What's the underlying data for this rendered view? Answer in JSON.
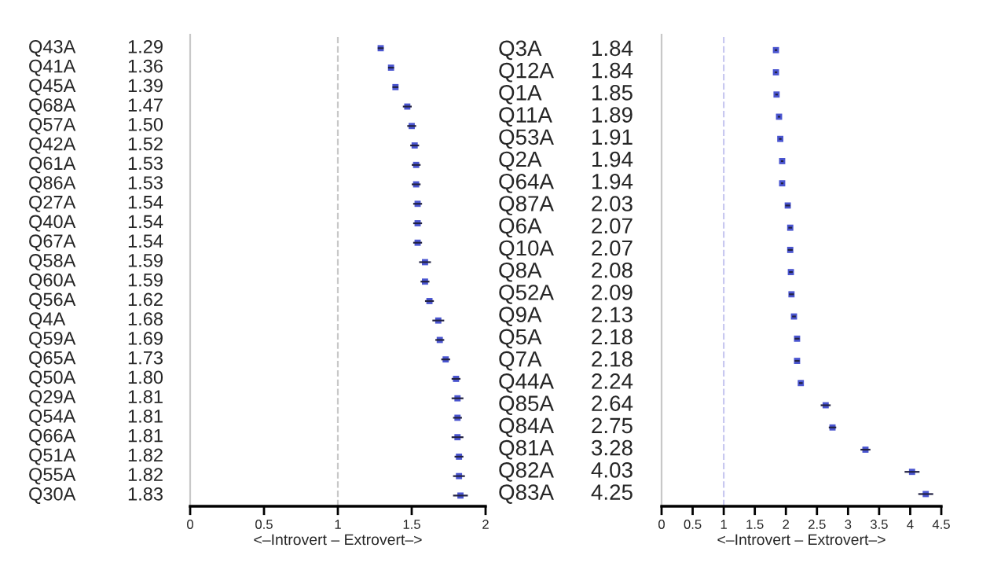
{
  "chart_data": [
    {
      "type": "scatter",
      "orientation": "horizontal",
      "marker": "square",
      "grid": false,
      "legend": false,
      "categories": [
        "Q43A",
        "Q41A",
        "Q45A",
        "Q68A",
        "Q57A",
        "Q42A",
        "Q61A",
        "Q86A",
        "Q27A",
        "Q40A",
        "Q67A",
        "Q58A",
        "Q60A",
        "Q56A",
        "Q4A",
        "Q59A",
        "Q65A",
        "Q50A",
        "Q29A",
        "Q54A",
        "Q66A",
        "Q51A",
        "Q55A",
        "Q30A"
      ],
      "series": [
        {
          "color": "#4a55d0",
          "values": [
            1.29,
            1.36,
            1.39,
            1.47,
            1.5,
            1.52,
            1.53,
            1.53,
            1.54,
            1.54,
            1.54,
            1.59,
            1.59,
            1.62,
            1.68,
            1.69,
            1.73,
            1.8,
            1.81,
            1.81,
            1.81,
            1.82,
            1.82,
            1.83
          ],
          "value_labels": [
            "1.29",
            "1.36",
            "1.39",
            "1.47",
            "1.50",
            "1.52",
            "1.53",
            "1.53",
            "1.54",
            "1.54",
            "1.54",
            "1.59",
            "1.59",
            "1.62",
            "1.68",
            "1.69",
            "1.73",
            "1.80",
            "1.81",
            "1.81",
            "1.81",
            "1.82",
            "1.82",
            "1.83"
          ],
          "errors": [
            0.02,
            0.02,
            0.02,
            0.03,
            0.03,
            0.03,
            0.03,
            0.03,
            0.03,
            0.03,
            0.03,
            0.04,
            0.03,
            0.03,
            0.04,
            0.03,
            0.03,
            0.03,
            0.04,
            0.03,
            0.04,
            0.03,
            0.04,
            0.05
          ]
        }
      ],
      "xlim": [
        0,
        2
      ],
      "xticks": [
        0,
        0.5,
        1,
        1.5,
        2
      ],
      "xlabel": "<–Introvert – Extrovert–>",
      "ref_lines": [
        {
          "axis": "x",
          "value": 1,
          "line_style": "dashed",
          "color": "#c8c8c8"
        }
      ]
    },
    {
      "type": "scatter",
      "orientation": "horizontal",
      "marker": "square",
      "data_labels": true,
      "grid": false,
      "legend": false,
      "categories": [
        "Q3A",
        "Q12A",
        "Q1A",
        "Q11A",
        "Q53A",
        "Q2A",
        "Q64A",
        "Q87A",
        "Q6A",
        "Q10A",
        "Q8A",
        "Q52A",
        "Q9A",
        "Q5A",
        "Q7A",
        "Q44A",
        "Q85A",
        "Q84A",
        "Q81A",
        "Q82A",
        "Q83A"
      ],
      "series": [
        {
          "color": "#4a55d0",
          "values": [
            1.84,
            1.84,
            1.85,
            1.89,
            1.91,
            1.94,
            1.94,
            2.03,
            2.07,
            2.07,
            2.08,
            2.09,
            2.13,
            2.18,
            2.18,
            2.24,
            2.64,
            2.75,
            3.28,
            4.03,
            4.25
          ],
          "errors": [
            0.02,
            0.02,
            0.02,
            0.02,
            0.02,
            0.02,
            0.02,
            0.04,
            0.03,
            0.04,
            0.03,
            0.04,
            0.03,
            0.04,
            0.04,
            0.03,
            0.08,
            0.06,
            0.08,
            0.12,
            0.12
          ]
        }
      ],
      "xlim": [
        0,
        4.5
      ],
      "xticks": [
        0,
        0.5,
        1,
        1.5,
        2,
        2.5,
        3,
        3.5,
        4,
        4.5
      ],
      "xlabel": "<–Introvert – Extrovert–>",
      "ref_lines": [
        {
          "axis": "x",
          "value": 1,
          "line_style": "dashed",
          "color": "#c8c8f0"
        }
      ]
    }
  ]
}
